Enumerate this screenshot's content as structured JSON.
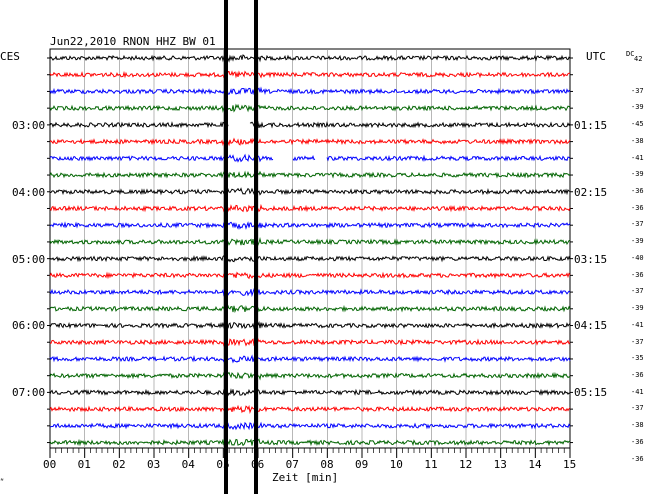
{
  "header": {
    "left_label": "CES",
    "title": "Jun22,2010   RNON HHZ BW 01",
    "right_label": "UTC",
    "dc_label": "DC"
  },
  "left_times": [
    "03:00",
    "04:00",
    "05:00",
    "06:00",
    "07:00"
  ],
  "right_times": [
    "01:15",
    "02:15",
    "03:15",
    "04:15",
    "05:15"
  ],
  "dc_values": [
    "42",
    "-37",
    "-39",
    "-45",
    "-38",
    "-41",
    "-39",
    "-36",
    "-36",
    "-37",
    "-39",
    "-40",
    "-36",
    "-37",
    "-39",
    "-41",
    "-37",
    "-35",
    "-36",
    "-41",
    "-37",
    "-38",
    "-36",
    "-36"
  ],
  "x_ticks": [
    "00",
    "01",
    "02",
    "03",
    "04",
    "05",
    "06",
    "07",
    "08",
    "09",
    "10",
    "11",
    "12",
    "13",
    "14",
    "15"
  ],
  "x_axis_label": "Zeit [min]",
  "footer_mark": "͌",
  "trace_colors": [
    "#000000",
    "#ff0000",
    "#0000ff",
    "#006400"
  ]
}
